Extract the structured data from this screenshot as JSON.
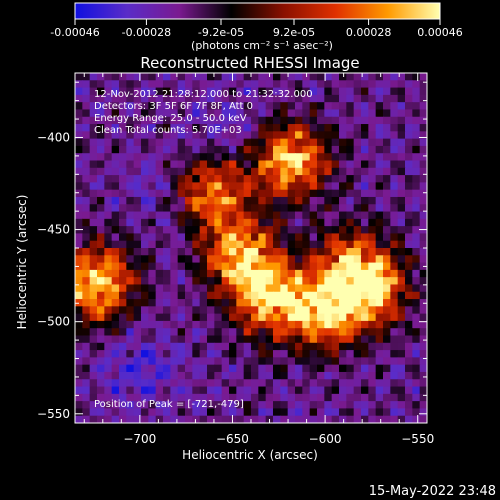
{
  "chart_data": {
    "type": "heatmap",
    "title": "Reconstructed RHESSI Image",
    "xlabel": "Heliocentric X (arcsec)",
    "ylabel": "Heliocentric Y (arcsec)",
    "xlim": [
      -735,
      -545
    ],
    "ylim": [
      -555,
      -365
    ],
    "x_ticks": [
      -700,
      -650,
      -600,
      -550
    ],
    "y_ticks": [
      -400,
      -450,
      -500,
      -550
    ],
    "colorbar": {
      "ticks": [
        "-0.00046",
        "-0.00028",
        "-9.2e-05",
        "9.2e-05",
        "0.00028",
        "0.00046"
      ],
      "range": [
        -0.00046,
        0.00046
      ],
      "unit_label": "(photons cm⁻² s⁻¹ asec⁻²)",
      "colors": [
        "#1010e0",
        "#5a2cc8",
        "#7a1a90",
        "#000000",
        "#8a1000",
        "#e03000",
        "#ff9a00",
        "#ffffb0"
      ]
    },
    "info_lines": [
      "12-Nov-2012 21:28:12.000 to 21:32:32.000",
      "Detectors: 3F 5F 6F 7F 8F, Att 0",
      "Energy Range: 25.0 - 50.0 keV",
      "Clean    Total counts: 5.70E+03"
    ],
    "peak_label": "Position of Peak = [-721,-479]",
    "peak_position": [
      -721,
      -479
    ],
    "blobs": [
      {
        "x": -724,
        "y": -479,
        "value": 0.00046
      },
      {
        "x": -618,
        "y": -412,
        "value": 0.0004
      },
      {
        "x": -660,
        "y": -430,
        "value": 0.0003
      },
      {
        "x": -645,
        "y": -465,
        "value": 0.00035
      },
      {
        "x": -628,
        "y": -488,
        "value": 0.00038
      },
      {
        "x": -600,
        "y": -495,
        "value": 0.0003
      },
      {
        "x": -585,
        "y": -470,
        "value": 0.00028
      },
      {
        "x": -575,
        "y": -485,
        "value": 0.00025
      },
      {
        "x": -700,
        "y": -525,
        "value": -0.00035
      },
      {
        "x": -655,
        "y": -395,
        "value": -0.0003
      },
      {
        "x": -690,
        "y": -430,
        "value": -0.00028
      }
    ]
  },
  "timestamp": "15-May-2022 23:48"
}
